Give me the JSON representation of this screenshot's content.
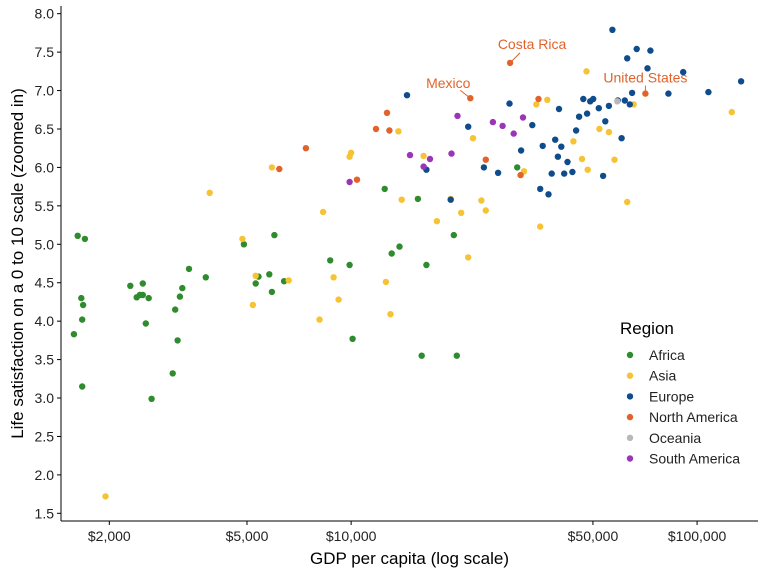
{
  "chart_data": {
    "type": "scatter",
    "title": "",
    "xlabel": "GDP per capita (log scale)",
    "ylabel": "Life satisfaction on a 0 to 10 scale (zoomed in)",
    "x_scale": "log",
    "xlim": [
      1450,
      150000
    ],
    "ylim": [
      1.4,
      8.1
    ],
    "x_ticks": [
      {
        "value": 2000,
        "label": "$2,000"
      },
      {
        "value": 5000,
        "label": "$5,000"
      },
      {
        "value": 10000,
        "label": "$10,000"
      },
      {
        "value": 50000,
        "label": "$50,000"
      },
      {
        "value": 100000,
        "label": "$100,000"
      }
    ],
    "y_ticks": [
      {
        "value": 1.5,
        "label": "1.5"
      },
      {
        "value": 2.0,
        "label": "2.0"
      },
      {
        "value": 2.5,
        "label": "2.5"
      },
      {
        "value": 3.0,
        "label": "3.0"
      },
      {
        "value": 3.5,
        "label": "3.5"
      },
      {
        "value": 4.0,
        "label": "4.0"
      },
      {
        "value": 4.5,
        "label": "4.5"
      },
      {
        "value": 5.0,
        "label": "5.0"
      },
      {
        "value": 5.5,
        "label": "5.5"
      },
      {
        "value": 6.0,
        "label": "6.0"
      },
      {
        "value": 6.5,
        "label": "6.5"
      },
      {
        "value": 7.0,
        "label": "7.0"
      },
      {
        "value": 7.5,
        "label": "7.5"
      },
      {
        "value": 8.0,
        "label": "8.0"
      }
    ],
    "grid": false,
    "legend": {
      "title": "Region",
      "position": "right"
    },
    "series": [
      {
        "name": "Africa",
        "color": "#2e8b2e",
        "points": [
          [
            1620,
            5.11
          ],
          [
            1700,
            5.07
          ],
          [
            1660,
            4.3
          ],
          [
            1680,
            4.21
          ],
          [
            1670,
            4.02
          ],
          [
            1580,
            3.83
          ],
          [
            1670,
            3.15
          ],
          [
            2300,
            4.46
          ],
          [
            2400,
            4.31
          ],
          [
            2450,
            4.34
          ],
          [
            2500,
            4.49
          ],
          [
            2500,
            4.34
          ],
          [
            2600,
            4.3
          ],
          [
            2550,
            3.97
          ],
          [
            2650,
            2.99
          ],
          [
            3100,
            4.15
          ],
          [
            3200,
            4.32
          ],
          [
            3250,
            4.43
          ],
          [
            3400,
            4.68
          ],
          [
            3150,
            3.75
          ],
          [
            3050,
            3.32
          ],
          [
            3800,
            4.57
          ],
          [
            4900,
            5.0
          ],
          [
            5300,
            4.49
          ],
          [
            5400,
            4.58
          ],
          [
            5800,
            4.61
          ],
          [
            6000,
            5.12
          ],
          [
            5900,
            4.38
          ],
          [
            6400,
            4.52
          ],
          [
            8700,
            4.79
          ],
          [
            9900,
            4.73
          ],
          [
            10100,
            3.77
          ],
          [
            12500,
            5.72
          ],
          [
            13100,
            4.88
          ],
          [
            13800,
            4.97
          ],
          [
            15600,
            5.59
          ],
          [
            16500,
            4.73
          ],
          [
            16000,
            3.55
          ],
          [
            19800,
            5.12
          ],
          [
            20200,
            3.55
          ],
          [
            30200,
            6.0
          ]
        ]
      },
      {
        "name": "Asia",
        "color": "#f6c335",
        "points": [
          [
            1950,
            1.72
          ],
          [
            3900,
            5.67
          ],
          [
            4850,
            5.07
          ],
          [
            5300,
            4.59
          ],
          [
            5200,
            4.21
          ],
          [
            5900,
            6.0
          ],
          [
            6600,
            4.53
          ],
          [
            8300,
            5.42
          ],
          [
            8900,
            4.57
          ],
          [
            9200,
            4.28
          ],
          [
            8100,
            4.02
          ],
          [
            9900,
            6.14
          ],
          [
            10000,
            6.19
          ],
          [
            12600,
            4.51
          ],
          [
            13000,
            4.09
          ],
          [
            13700,
            6.47
          ],
          [
            14000,
            5.58
          ],
          [
            16200,
            6.15
          ],
          [
            17700,
            5.3
          ],
          [
            19400,
            5.59
          ],
          [
            20800,
            5.41
          ],
          [
            21800,
            4.83
          ],
          [
            22500,
            6.38
          ],
          [
            23800,
            5.57
          ],
          [
            24500,
            5.44
          ],
          [
            31600,
            5.95
          ],
          [
            34300,
            6.82
          ],
          [
            35200,
            5.23
          ],
          [
            36900,
            6.88
          ],
          [
            43900,
            6.34
          ],
          [
            46500,
            6.11
          ],
          [
            47900,
            7.25
          ],
          [
            48300,
            5.97
          ],
          [
            52200,
            6.5
          ],
          [
            55600,
            6.46
          ],
          [
            57700,
            6.1
          ],
          [
            62800,
            5.55
          ],
          [
            65600,
            6.82
          ],
          [
            126000,
            6.72
          ]
        ]
      },
      {
        "name": "Europe",
        "color": "#0f4c8c",
        "points": [
          [
            14500,
            6.94
          ],
          [
            16500,
            5.97
          ],
          [
            19400,
            5.58
          ],
          [
            21800,
            6.53
          ],
          [
            24200,
            6.0
          ],
          [
            26600,
            5.93
          ],
          [
            28700,
            6.83
          ],
          [
            31000,
            6.22
          ],
          [
            33400,
            6.55
          ],
          [
            35200,
            5.72
          ],
          [
            35800,
            6.28
          ],
          [
            37200,
            5.65
          ],
          [
            38000,
            5.92
          ],
          [
            38900,
            6.36
          ],
          [
            39600,
            6.14
          ],
          [
            39900,
            6.76
          ],
          [
            40500,
            6.27
          ],
          [
            41300,
            5.92
          ],
          [
            42200,
            6.07
          ],
          [
            43600,
            5.94
          ],
          [
            44700,
            6.48
          ],
          [
            45600,
            6.66
          ],
          [
            46900,
            6.89
          ],
          [
            48100,
            6.7
          ],
          [
            49100,
            6.86
          ],
          [
            50100,
            6.89
          ],
          [
            52000,
            6.77
          ],
          [
            53500,
            5.89
          ],
          [
            54300,
            6.6
          ],
          [
            55600,
            6.8
          ],
          [
            56900,
            7.79
          ],
          [
            59000,
            6.87
          ],
          [
            60500,
            6.38
          ],
          [
            61800,
            6.87
          ],
          [
            62800,
            7.42
          ],
          [
            63900,
            6.82
          ],
          [
            64900,
            6.97
          ],
          [
            66900,
            7.54
          ],
          [
            71900,
            7.29
          ],
          [
            73300,
            7.52
          ],
          [
            82600,
            6.96
          ],
          [
            91200,
            7.24
          ],
          [
            107800,
            6.98
          ],
          [
            134000,
            7.12
          ]
        ]
      },
      {
        "name": "North America",
        "color": "#e1632b",
        "points": [
          [
            6200,
            5.98
          ],
          [
            7400,
            6.25
          ],
          [
            10400,
            5.84
          ],
          [
            11800,
            6.5
          ],
          [
            12700,
            6.71
          ],
          [
            12900,
            6.48
          ],
          [
            22100,
            6.9
          ],
          [
            24500,
            6.1
          ],
          [
            28800,
            7.36
          ],
          [
            30900,
            5.9
          ],
          [
            34800,
            6.89
          ],
          [
            70900,
            6.96
          ]
        ]
      },
      {
        "name": "Oceania",
        "color": "#b8b8b8",
        "points": [
          [
            58800,
            6.86
          ]
        ]
      },
      {
        "name": "South America",
        "color": "#9b35b8",
        "points": [
          [
            9900,
            5.81
          ],
          [
            14800,
            6.16
          ],
          [
            16200,
            6.01
          ],
          [
            16900,
            6.11
          ],
          [
            19500,
            6.18
          ],
          [
            20300,
            6.67
          ],
          [
            25700,
            6.59
          ],
          [
            27400,
            6.54
          ],
          [
            29500,
            6.44
          ],
          [
            31400,
            6.65
          ]
        ]
      }
    ],
    "annotations": [
      {
        "text": "Costa Rica",
        "x": 28800,
        "y": 7.36,
        "color": "#e1632b",
        "anchor": "up-right"
      },
      {
        "text": "Mexico",
        "x": 22100,
        "y": 6.9,
        "color": "#e1632b",
        "anchor": "up-left"
      },
      {
        "text": "United States",
        "x": 70900,
        "y": 6.96,
        "color": "#e1632b",
        "anchor": "up"
      }
    ]
  }
}
